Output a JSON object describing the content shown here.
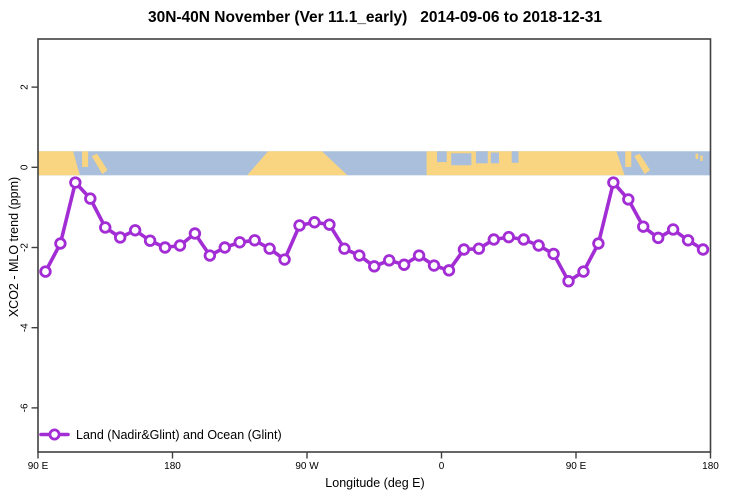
{
  "header": {
    "title": "30N-40N November (Ver 11.1_early)   2014-09-06 to 2018-12-31"
  },
  "axes": {
    "xlabel": "Longitude (deg E)",
    "ylabel": "XCO2 - MLO trend (ppm)",
    "x_ticks": [
      {
        "pos": 90,
        "label": "90 E"
      },
      {
        "pos": 180,
        "label": "180"
      },
      {
        "pos": 270,
        "label": "90 W"
      },
      {
        "pos": 360,
        "label": "0"
      },
      {
        "pos": 450,
        "label": "90 E"
      },
      {
        "pos": 540,
        "label": "180"
      }
    ],
    "y_ticks": [
      {
        "pos": 2,
        "label": "2"
      },
      {
        "pos": 0,
        "label": "0"
      },
      {
        "pos": -2,
        "label": "-2"
      },
      {
        "pos": -4,
        "label": "-4"
      },
      {
        "pos": -6,
        "label": "-6"
      }
    ]
  },
  "legend": {
    "series_label": "Land (Nadir&Glint) and Ocean (Glint)"
  },
  "colors": {
    "series": "#A32DD5",
    "land": "#FAD581",
    "ocean": "#A9BFDB",
    "frame": "#404040",
    "text": "#000000"
  },
  "chart_data": {
    "type": "line",
    "title": "30N-40N November (Ver 11.1_early)   2014-09-06 to 2018-12-31",
    "xlabel": "Longitude (deg E)",
    "ylabel": "XCO2 - MLO trend (ppm)",
    "series_name": "Land (Nadir&Glint) and Ocean (Glint)",
    "xlim": [
      90,
      540
    ],
    "ylim": [
      -7.1,
      3.2
    ],
    "x_axis_note": "longitude axis wraps eastward: 90E -> 180 -> 90W -> 0 -> 90E -> 180 (450 deg span)",
    "x": [
      95,
      105,
      115,
      125,
      135,
      145,
      155,
      165,
      175,
      185,
      195,
      205,
      215,
      225,
      235,
      245,
      255,
      265,
      275,
      285,
      295,
      305,
      315,
      325,
      335,
      345,
      355,
      365,
      375,
      385,
      395,
      405,
      415,
      425,
      435,
      445,
      455,
      465,
      475,
      485,
      495,
      505,
      515,
      525,
      535
    ],
    "y": [
      -2.6,
      -1.9,
      -0.38,
      -0.78,
      -1.5,
      -1.75,
      -1.57,
      -1.83,
      -2.0,
      -1.95,
      -1.65,
      -2.2,
      -2.0,
      -1.87,
      -1.82,
      -2.03,
      -2.3,
      -1.45,
      -1.37,
      -1.43,
      -2.03,
      -2.2,
      -2.47,
      -2.32,
      -2.43,
      -2.2,
      -2.45,
      -2.57,
      -2.05,
      -2.03,
      -1.8,
      -1.74,
      -1.8,
      -1.95,
      -2.16,
      -2.84,
      -2.6,
      -1.9,
      -0.38,
      -0.8,
      -1.48,
      -1.76,
      -1.55,
      -1.82,
      -2.05
    ],
    "map_band": {
      "y_top": 0.4,
      "y_bottom": -0.2,
      "land_polygons": [
        {
          "name": "asia-mainland-left",
          "points": [
            [
              90,
              0
            ],
            [
              113.5,
              0
            ],
            [
              118,
              1
            ],
            [
              90,
              1
            ]
          ]
        },
        {
          "name": "korea-left",
          "points": [
            [
              119.5,
              0
            ],
            [
              123.5,
              0
            ],
            [
              123.5,
              0.65
            ],
            [
              119.5,
              0.65
            ]
          ]
        },
        {
          "name": "japan-left",
          "points": [
            [
              126,
              0.2
            ],
            [
              129.5,
              0.1
            ],
            [
              136.5,
              0.78
            ],
            [
              133,
              0.95
            ]
          ]
        },
        {
          "name": "north-america",
          "points": [
            [
              244,
              0
            ],
            [
              280,
              0
            ],
            [
              297,
              1
            ],
            [
              230,
              1
            ]
          ]
        },
        {
          "name": "eurasia-africa",
          "points": [
            [
              350,
              0
            ],
            [
              477,
              0
            ],
            [
              482.5,
              1
            ],
            [
              350,
              1
            ]
          ]
        },
        {
          "name": "korea-right",
          "points": [
            [
              483,
              0
            ],
            [
              487,
              0
            ],
            [
              487,
              0.65
            ],
            [
              483,
              0.65
            ]
          ]
        },
        {
          "name": "japan-right",
          "points": [
            [
              489,
              0.2
            ],
            [
              492.5,
              0.1
            ],
            [
              499.5,
              0.78
            ],
            [
              496,
              0.95
            ]
          ]
        },
        {
          "name": "island-1",
          "points": [
            [
              530,
              0.1
            ],
            [
              531.8,
              0.1
            ],
            [
              531.8,
              0.32
            ],
            [
              530,
              0.32
            ]
          ]
        },
        {
          "name": "island-2",
          "points": [
            [
              533.2,
              0.18
            ],
            [
              534.8,
              0.18
            ],
            [
              534.8,
              0.4
            ],
            [
              533.2,
              0.4
            ]
          ]
        }
      ],
      "ocean_patches": [
        {
          "name": "mediterranean-west",
          "points": [
            [
              357,
              0
            ],
            [
              363.5,
              0
            ],
            [
              363.5,
              0.45
            ],
            [
              357,
              0.45
            ]
          ]
        },
        {
          "name": "mediterranean-central",
          "points": [
            [
              366.5,
              0.08
            ],
            [
              380,
              0.08
            ],
            [
              380,
              0.58
            ],
            [
              366.5,
              0.58
            ]
          ]
        },
        {
          "name": "mediterranean-east",
          "points": [
            [
              383,
              0
            ],
            [
              391,
              0
            ],
            [
              391,
              0.5
            ],
            [
              383,
              0.5
            ]
          ]
        },
        {
          "name": "aegean-black-sea",
          "points": [
            [
              393,
              0.05
            ],
            [
              398.5,
              0.05
            ],
            [
              398.5,
              0.5
            ],
            [
              393,
              0.5
            ]
          ]
        },
        {
          "name": "caspian-sea",
          "points": [
            [
              407,
              0
            ],
            [
              411.5,
              0
            ],
            [
              411.5,
              0.48
            ],
            [
              407,
              0.48
            ]
          ]
        }
      ]
    }
  }
}
